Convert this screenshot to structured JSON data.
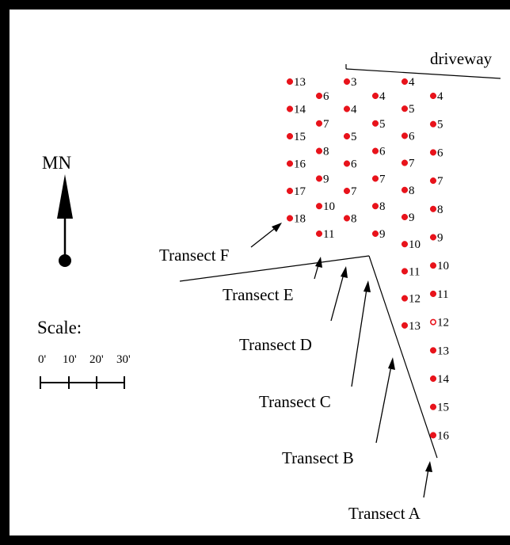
{
  "driveway_label": "driveway",
  "north": {
    "label": "MN"
  },
  "scale": {
    "title": "Scale:",
    "ticks": [
      "0'",
      "10'",
      "20'",
      "30'"
    ]
  },
  "transect_labels": [
    "Transect F",
    "Transect E",
    "Transect D",
    "Transect C",
    "Transect B",
    "Transect A"
  ],
  "transects": [
    {
      "name": "F",
      "points": [
        {
          "n": "13",
          "hollow": false
        },
        {
          "n": "14",
          "hollow": false
        },
        {
          "n": "15",
          "hollow": false
        },
        {
          "n": "16",
          "hollow": false
        },
        {
          "n": "17",
          "hollow": false
        },
        {
          "n": "18",
          "hollow": false
        }
      ]
    },
    {
      "name": "E",
      "points": [
        {
          "n": "6",
          "hollow": false
        },
        {
          "n": "7",
          "hollow": false
        },
        {
          "n": "8",
          "hollow": false
        },
        {
          "n": "9",
          "hollow": false
        },
        {
          "n": "10",
          "hollow": false
        },
        {
          "n": "11",
          "hollow": false
        }
      ]
    },
    {
      "name": "D",
      "points": [
        {
          "n": "3",
          "hollow": false
        },
        {
          "n": "4",
          "hollow": false
        },
        {
          "n": "5",
          "hollow": false
        },
        {
          "n": "6",
          "hollow": false
        },
        {
          "n": "7",
          "hollow": false
        },
        {
          "n": "8",
          "hollow": false
        }
      ]
    },
    {
      "name": "C",
      "points": [
        {
          "n": "4",
          "hollow": false
        },
        {
          "n": "5",
          "hollow": false
        },
        {
          "n": "6",
          "hollow": false
        },
        {
          "n": "7",
          "hollow": false
        },
        {
          "n": "8",
          "hollow": false
        },
        {
          "n": "9",
          "hollow": false
        }
      ]
    },
    {
      "name": "B",
      "points": [
        {
          "n": "4",
          "hollow": false
        },
        {
          "n": "5",
          "hollow": false
        },
        {
          "n": "6",
          "hollow": false
        },
        {
          "n": "7",
          "hollow": false
        },
        {
          "n": "8",
          "hollow": false
        },
        {
          "n": "9",
          "hollow": false
        },
        {
          "n": "10",
          "hollow": false
        },
        {
          "n": "11",
          "hollow": false
        },
        {
          "n": "12",
          "hollow": false
        },
        {
          "n": "13",
          "hollow": false
        }
      ]
    },
    {
      "name": "A",
      "points": [
        {
          "n": "4",
          "hollow": false
        },
        {
          "n": "5",
          "hollow": false
        },
        {
          "n": "6",
          "hollow": false
        },
        {
          "n": "7",
          "hollow": false
        },
        {
          "n": "8",
          "hollow": false
        },
        {
          "n": "9",
          "hollow": false
        },
        {
          "n": "10",
          "hollow": false
        },
        {
          "n": "11",
          "hollow": false
        },
        {
          "n": "12",
          "hollow": true
        },
        {
          "n": "13",
          "hollow": false
        },
        {
          "n": "14",
          "hollow": false
        },
        {
          "n": "15",
          "hollow": false
        },
        {
          "n": "16",
          "hollow": false
        }
      ]
    }
  ],
  "colors": {
    "point": "#e8131b",
    "ink": "#000000"
  }
}
